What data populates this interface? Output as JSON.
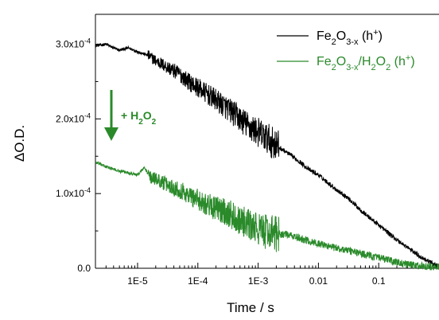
{
  "chart_data": {
    "type": "line",
    "xscale": "log",
    "xlim": [
      2e-06,
      1
    ],
    "ylim": [
      0,
      0.00034
    ],
    "xlabel": "Time / s",
    "ylabel": "ΔO.D.",
    "xticks": [
      {
        "value": 1e-05,
        "label": "1E-5"
      },
      {
        "value": 0.0001,
        "label": "1E-4"
      },
      {
        "value": 0.001,
        "label": "1E-3"
      },
      {
        "value": 0.01,
        "label": "0.01"
      },
      {
        "value": 0.1,
        "label": "0.1"
      }
    ],
    "yticks": [
      {
        "value": 0,
        "mant": "0.0",
        "exp": ""
      },
      {
        "value": 0.0001,
        "mant": "1.0x10",
        "exp": "-4"
      },
      {
        "value": 0.0002,
        "mant": "2.0x10",
        "exp": "-4"
      },
      {
        "value": 0.0003,
        "mant": "3.0x10",
        "exp": "-4"
      }
    ],
    "series": [
      {
        "name": "Fe2O3-x (h+)",
        "color": "#000000",
        "x": [
          2e-06,
          3e-06,
          4e-06,
          5e-06,
          7e-06,
          1e-05,
          1.5e-05,
          2e-05,
          3e-05,
          5e-05,
          7e-05,
          0.0001,
          0.0002,
          0.0003,
          0.0005,
          0.0007,
          0.001,
          0.0015,
          0.0022,
          0.003,
          0.005,
          0.007,
          0.01,
          0.02,
          0.03,
          0.05,
          0.07,
          0.1,
          0.2,
          0.3,
          0.5,
          1.0
        ],
        "y": [
          0.000298,
          0.0003,
          0.000295,
          0.000292,
          0.000295,
          0.00029,
          0.000285,
          0.000278,
          0.00027,
          0.00026,
          0.00025,
          0.000242,
          0.000225,
          0.000215,
          0.0002,
          0.00019,
          0.000182,
          0.000172,
          0.000162,
          0.000155,
          0.000142,
          0.000132,
          0.000125,
          0.000105,
          9.5e-05,
          7.8e-05,
          6.8e-05,
          5.8e-05,
          3.8e-05,
          2.8e-05,
          1.5e-05,
          2e-06
        ]
      },
      {
        "name": "Fe2O3-x/H2O2 (h+)",
        "color": "#2a8a2a",
        "x": [
          2e-06,
          3e-06,
          5e-06,
          7e-06,
          1e-05,
          1.3e-05,
          1.6e-05,
          2e-05,
          3e-05,
          5e-05,
          7e-05,
          0.0001,
          0.0002,
          0.0003,
          0.0005,
          0.0007,
          0.001,
          0.0015,
          0.0022,
          0.003,
          0.005,
          0.007,
          0.01,
          0.02,
          0.03,
          0.05,
          0.07,
          0.1,
          0.2,
          0.3,
          0.5,
          1.0
        ],
        "y": [
          0.000142,
          0.000136,
          0.00013,
          0.000128,
          0.000125,
          0.000135,
          0.000122,
          0.00012,
          0.000112,
          0.000105,
          9.8e-05,
          9.2e-05,
          8e-05,
          7.5e-05,
          6.5e-05,
          5.8e-05,
          5.2e-05,
          4.8e-05,
          4.6e-05,
          4.5e-05,
          4e-05,
          3.6e-05,
          3.3e-05,
          2.7e-05,
          2.4e-05,
          2e-05,
          1.7e-05,
          1.4e-05,
          8e-06,
          5e-06,
          3e-06,
          1e-06
        ]
      }
    ],
    "legend": {
      "placement": "top-right",
      "entries": [
        {
          "color": "#000000",
          "base1": "Fe",
          "sub1": "2",
          "base2": "O",
          "sub2": "3-x",
          "tail": " (h",
          "sup": "+",
          "close": ")"
        },
        {
          "color": "#2a8a2a",
          "base1": "Fe",
          "sub1": "2",
          "base2": "O",
          "sub2": "3-x",
          "slash": "/H",
          "sub3": "2",
          "o2": "O",
          "sub4": "2",
          "tail": " (h",
          "sup": "+",
          "close": ")"
        }
      ]
    },
    "annotation": {
      "color": "#2a8a2a",
      "prefix": "+ H",
      "sub1": "2",
      "mid": "O",
      "sub2": "2"
    }
  }
}
